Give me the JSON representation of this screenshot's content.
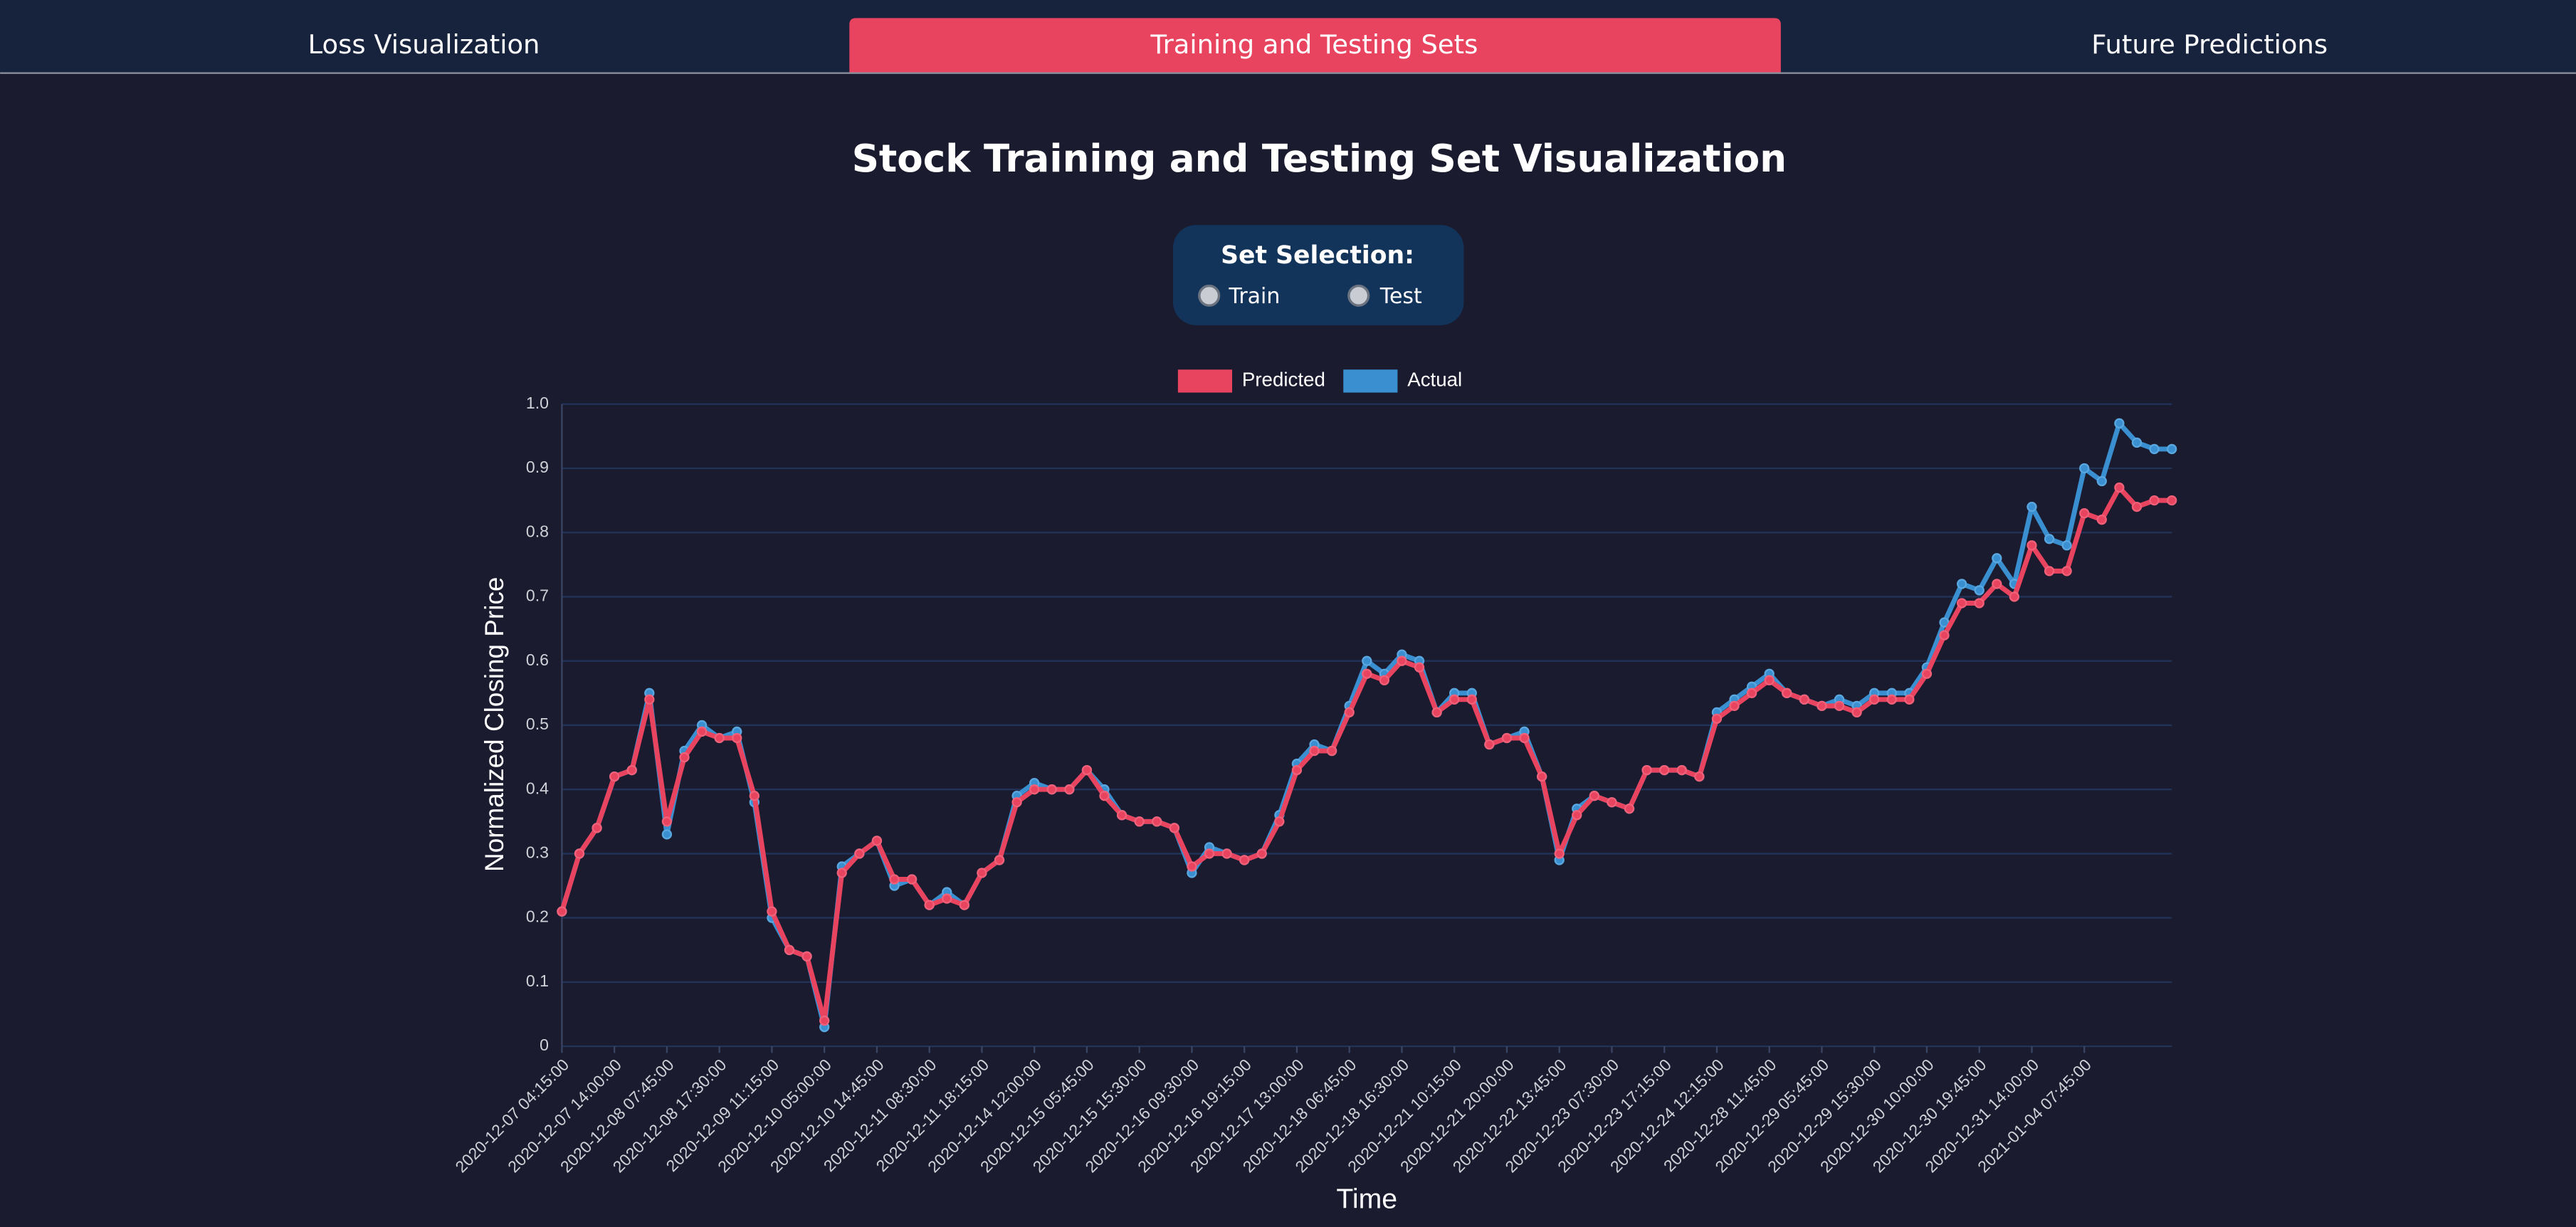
{
  "tabs": [
    "Loss Visualization",
    "Training and Testing Sets",
    "Future Predictions"
  ],
  "active_tab": 1,
  "selector": {
    "label": "Set Selection:",
    "options": [
      "Train",
      "Test"
    ]
  },
  "chart_data": {
    "type": "line",
    "title": "Stock Training and Testing Set Visualization",
    "x_label": "Time",
    "y_label": "Normalized Closing Price",
    "legend": "top",
    "grid": true,
    "ylim": [
      0,
      1
    ],
    "yticks": [
      0,
      0.1,
      0.2,
      0.3,
      0.4,
      0.5,
      0.6,
      0.7,
      0.8,
      0.9,
      {
        "value": 1,
        "label": "1.0"
      }
    ],
    "categories": [
      "2020-12-07 04:15:00",
      null,
      null,
      "2020-12-07 14:00:00",
      null,
      null,
      "2020-12-08 07:45:00",
      null,
      null,
      "2020-12-08 17:30:00",
      null,
      null,
      "2020-12-09 11:15:00",
      null,
      null,
      "2020-12-10 05:00:00",
      null,
      null,
      "2020-12-10 14:45:00",
      null,
      null,
      "2020-12-11 08:30:00",
      null,
      null,
      "2020-12-11 18:15:00",
      null,
      null,
      "2020-12-14 12:00:00",
      null,
      null,
      "2020-12-15 05:45:00",
      null,
      null,
      "2020-12-15 15:30:00",
      null,
      null,
      "2020-12-16 09:30:00",
      null,
      null,
      "2020-12-16 19:15:00",
      null,
      null,
      "2020-12-17 13:00:00",
      null,
      null,
      "2020-12-18 06:45:00",
      null,
      null,
      "2020-12-18 16:30:00",
      null,
      null,
      "2020-12-21 10:15:00",
      null,
      null,
      "2020-12-21 20:00:00",
      null,
      null,
      "2020-12-22 13:45:00",
      null,
      null,
      "2020-12-23 07:30:00",
      null,
      null,
      "2020-12-23 17:15:00",
      null,
      null,
      "2020-12-24 12:15:00",
      null,
      null,
      "2020-12-28 11:45:00",
      null,
      null,
      "2020-12-29 05:45:00",
      null,
      null,
      "2020-12-29 15:30:00",
      null,
      null,
      "2020-12-30 10:00:00",
      null,
      null,
      "2020-12-30 19:45:00",
      null,
      null,
      "2020-12-31 14:00:00",
      null,
      null,
      "2021-01-04 07:45:00",
      null,
      null,
      null,
      null,
      null
    ],
    "series": [
      {
        "name": "Predicted",
        "color": "#e8445f",
        "values": [
          0.21,
          0.3,
          0.34,
          0.42,
          0.43,
          0.54,
          0.35,
          0.45,
          0.49,
          0.48,
          0.48,
          0.39,
          0.21,
          0.15,
          0.14,
          0.04,
          0.27,
          0.3,
          0.32,
          0.26,
          0.26,
          0.22,
          0.23,
          0.22,
          0.27,
          0.29,
          0.38,
          0.4,
          0.4,
          0.4,
          0.43,
          0.39,
          0.36,
          0.35,
          0.35,
          0.34,
          0.28,
          0.3,
          0.3,
          0.29,
          0.3,
          0.35,
          0.43,
          0.46,
          0.46,
          0.52,
          0.58,
          0.57,
          0.6,
          0.59,
          0.52,
          0.54,
          0.54,
          0.47,
          0.48,
          0.48,
          0.42,
          0.3,
          0.36,
          0.39,
          0.38,
          0.37,
          0.43,
          0.43,
          0.43,
          0.42,
          0.51,
          0.53,
          0.55,
          0.57,
          0.55,
          0.54,
          0.53,
          0.53,
          0.52,
          0.54,
          0.54,
          0.54,
          0.58,
          0.64,
          0.69,
          0.69,
          0.72,
          0.7,
          0.78,
          0.74,
          0.74,
          0.83,
          0.82,
          0.87,
          0.84,
          0.85,
          0.85
        ]
      },
      {
        "name": "Actual",
        "color": "#3a8fd0",
        "values": [
          0.21,
          0.3,
          0.34,
          0.42,
          0.43,
          0.55,
          0.33,
          0.46,
          0.5,
          0.48,
          0.49,
          0.38,
          0.2,
          0.15,
          0.14,
          0.03,
          0.28,
          0.3,
          0.32,
          0.25,
          0.26,
          0.22,
          0.24,
          0.22,
          0.27,
          0.29,
          0.39,
          0.41,
          0.4,
          0.4,
          0.43,
          0.4,
          0.36,
          0.35,
          0.35,
          0.34,
          0.27,
          0.31,
          0.3,
          0.29,
          0.3,
          0.36,
          0.44,
          0.47,
          0.46,
          0.53,
          0.6,
          0.58,
          0.61,
          0.6,
          0.52,
          0.55,
          0.55,
          0.47,
          0.48,
          0.49,
          0.42,
          0.29,
          0.37,
          0.39,
          0.38,
          0.37,
          0.43,
          0.43,
          0.43,
          0.42,
          0.52,
          0.54,
          0.56,
          0.58,
          0.55,
          0.54,
          0.53,
          0.54,
          0.53,
          0.55,
          0.55,
          0.55,
          0.59,
          0.66,
          0.72,
          0.71,
          0.76,
          0.72,
          0.84,
          0.79,
          0.78,
          0.9,
          0.88,
          0.97,
          0.94,
          0.93,
          0.93
        ]
      }
    ]
  }
}
